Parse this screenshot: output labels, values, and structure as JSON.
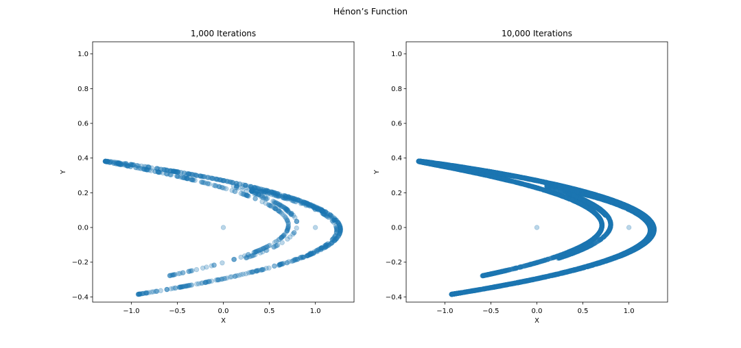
{
  "figure": {
    "suptitle": "Hénon’s Function"
  },
  "chart_data": [
    {
      "type": "scatter",
      "title": "1,000 Iterations",
      "xlabel": "X",
      "ylabel": "Y",
      "xlim": [
        -1.42,
        1.42
      ],
      "ylim": [
        -0.43,
        1.07
      ],
      "xticks": [
        -1.0,
        -0.5,
        0.0,
        0.5,
        1.0
      ],
      "xtick_labels": [
        "−1.0",
        "−0.5",
        "0.0",
        "0.5",
        "1.0"
      ],
      "yticks": [
        -0.4,
        -0.2,
        0.0,
        0.2,
        0.4,
        0.6,
        0.8,
        1.0
      ],
      "ytick_labels": [
        "−0.4",
        "−0.2",
        "0.0",
        "0.2",
        "0.4",
        "0.6",
        "0.8",
        "1.0"
      ],
      "grid": false,
      "legend": "none",
      "marker_color": "#1f77b4",
      "marker_alpha": 0.3,
      "series": [
        {
          "generator": "henon",
          "a": 1.4,
          "b": 0.3,
          "x0": 0,
          "y0": 0,
          "iterations": 1000
        }
      ]
    },
    {
      "type": "scatter",
      "title": "10,000 Iterations",
      "xlabel": "X",
      "ylabel": "Y",
      "xlim": [
        -1.42,
        1.42
      ],
      "ylim": [
        -0.43,
        1.07
      ],
      "xticks": [
        -1.0,
        -0.5,
        0.0,
        0.5,
        1.0
      ],
      "xtick_labels": [
        "−1.0",
        "−0.5",
        "0.0",
        "0.5",
        "1.0"
      ],
      "yticks": [
        -0.4,
        -0.2,
        0.0,
        0.2,
        0.4,
        0.6,
        0.8,
        1.0
      ],
      "ytick_labels": [
        "−0.4",
        "−0.2",
        "0.0",
        "0.2",
        "0.4",
        "0.6",
        "0.8",
        "1.0"
      ],
      "grid": false,
      "legend": "none",
      "marker_color": "#1f77b4",
      "marker_alpha": 0.3,
      "series": [
        {
          "generator": "henon",
          "a": 1.4,
          "b": 0.3,
          "x0": 0,
          "y0": 0,
          "iterations": 10000
        }
      ]
    }
  ]
}
